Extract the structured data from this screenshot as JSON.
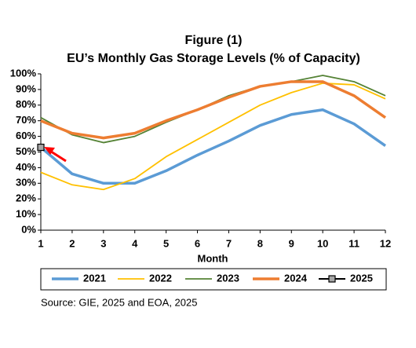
{
  "chart_data": {
    "type": "line",
    "title": "Figure (1)",
    "subtitle": "EU’s Monthly Gas Storage Levels (% of Capacity)",
    "x_label": "Month",
    "source": "Source: GIE, 2025 and EOA, 2025",
    "x": [
      1,
      2,
      3,
      4,
      5,
      6,
      7,
      8,
      9,
      10,
      11,
      12
    ],
    "xlim": [
      1,
      12
    ],
    "xticks": [
      1,
      2,
      3,
      4,
      5,
      6,
      7,
      8,
      9,
      10,
      11,
      12
    ],
    "ylim": [
      0,
      100
    ],
    "yticks": [
      {
        "value": 0,
        "label": "0%"
      },
      {
        "value": 10,
        "label": "10%"
      },
      {
        "value": 20,
        "label": "20%"
      },
      {
        "value": 30,
        "label": "30%"
      },
      {
        "value": 40,
        "label": "40%"
      },
      {
        "value": 50,
        "label": "50%"
      },
      {
        "value": 60,
        "label": "60%"
      },
      {
        "value": 70,
        "label": "70%"
      },
      {
        "value": 80,
        "label": "80%"
      },
      {
        "value": 90,
        "label": "90%"
      },
      {
        "value": 100,
        "label": "100%"
      }
    ],
    "grid": false,
    "legend": "bottom",
    "series": [
      {
        "name": "2021",
        "color": "#5b9bd5",
        "values": [
          53,
          36,
          30,
          30,
          38,
          48,
          57,
          67,
          74,
          77,
          68,
          54
        ]
      },
      {
        "name": "2022",
        "color": "#ffc000",
        "values": [
          37,
          29,
          26,
          33,
          47,
          58,
          69,
          80,
          88,
          94,
          93,
          84
        ]
      },
      {
        "name": "2023",
        "color": "#548235",
        "values": [
          72,
          61,
          56,
          60,
          69,
          77,
          86,
          92,
          95,
          99,
          95,
          86
        ]
      },
      {
        "name": "2024",
        "color": "#ed7d31",
        "values": [
          70,
          62,
          59,
          62,
          70,
          77,
          85,
          92,
          95,
          95,
          86,
          72
        ]
      },
      {
        "name": "2025",
        "color": "#a6a6a6",
        "values": [
          53,
          null,
          null,
          null,
          null,
          null,
          null,
          null,
          null,
          null,
          null,
          null
        ]
      }
    ]
  }
}
